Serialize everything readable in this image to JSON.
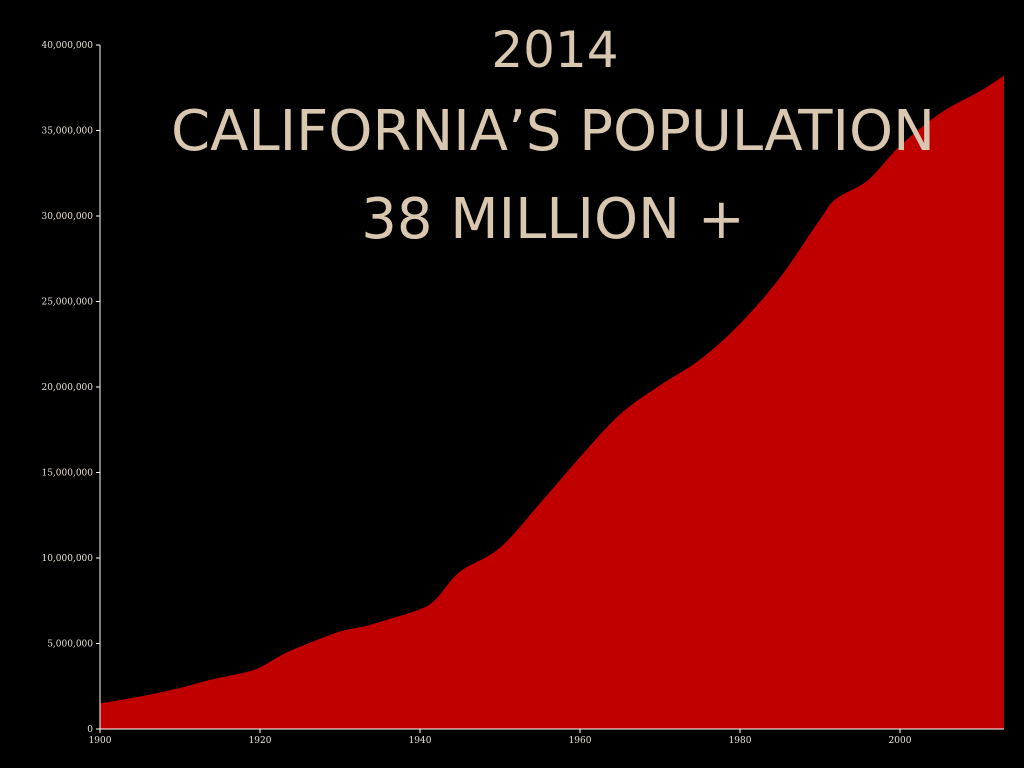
{
  "colors": {
    "background": "#000000",
    "area_fill": "#c00000",
    "title": "#d9c7b0",
    "axis": "#ffffff",
    "tick_text": "#e8e0d0"
  },
  "title_lines": [
    "2014",
    "CALIFORNIA’S POPULATION",
    "38 MILLION +"
  ],
  "chart_data": {
    "type": "area",
    "title": "2014 CALIFORNIA’S POPULATION 38 MILLION +",
    "xlabel": "",
    "ylabel": "",
    "xlim": [
      1900,
      2013
    ],
    "ylim": [
      0,
      40000000
    ],
    "x_ticks": [
      1900,
      1920,
      1940,
      1960,
      1980,
      2000
    ],
    "x_tick_labels": [
      "1900",
      "1920",
      "1940",
      "1960",
      "1980",
      "2000"
    ],
    "y_ticks": [
      0,
      5000000,
      10000000,
      15000000,
      20000000,
      25000000,
      30000000,
      35000000,
      40000000
    ],
    "y_tick_labels": [
      "0",
      "5,000,000",
      "10,000,000",
      "15,000,000",
      "20,000,000",
      "25,000,000",
      "30,000,000",
      "35,000,000",
      "40,000,000"
    ],
    "grid": false,
    "legend": "none",
    "series": [
      {
        "x": [
          1900,
          1905,
          1910,
          1914,
          1918,
          1920,
          1923,
          1926,
          1930,
          1933,
          1936,
          1940,
          1942,
          1945,
          1950,
          1955,
          1960,
          1965,
          1970,
          1975,
          1980,
          1985,
          1990,
          1992,
          1996,
          2000,
          2005,
          2010,
          2013
        ],
        "values": [
          1500000,
          1900000,
          2400000,
          2900000,
          3300000,
          3600000,
          4400000,
          5000000,
          5700000,
          6000000,
          6400000,
          7000000,
          7600000,
          9200000,
          10600000,
          13200000,
          15900000,
          18400000,
          20100000,
          21600000,
          23700000,
          26400000,
          29800000,
          31000000,
          32100000,
          34100000,
          36000000,
          37300000,
          38200000
        ]
      }
    ]
  }
}
